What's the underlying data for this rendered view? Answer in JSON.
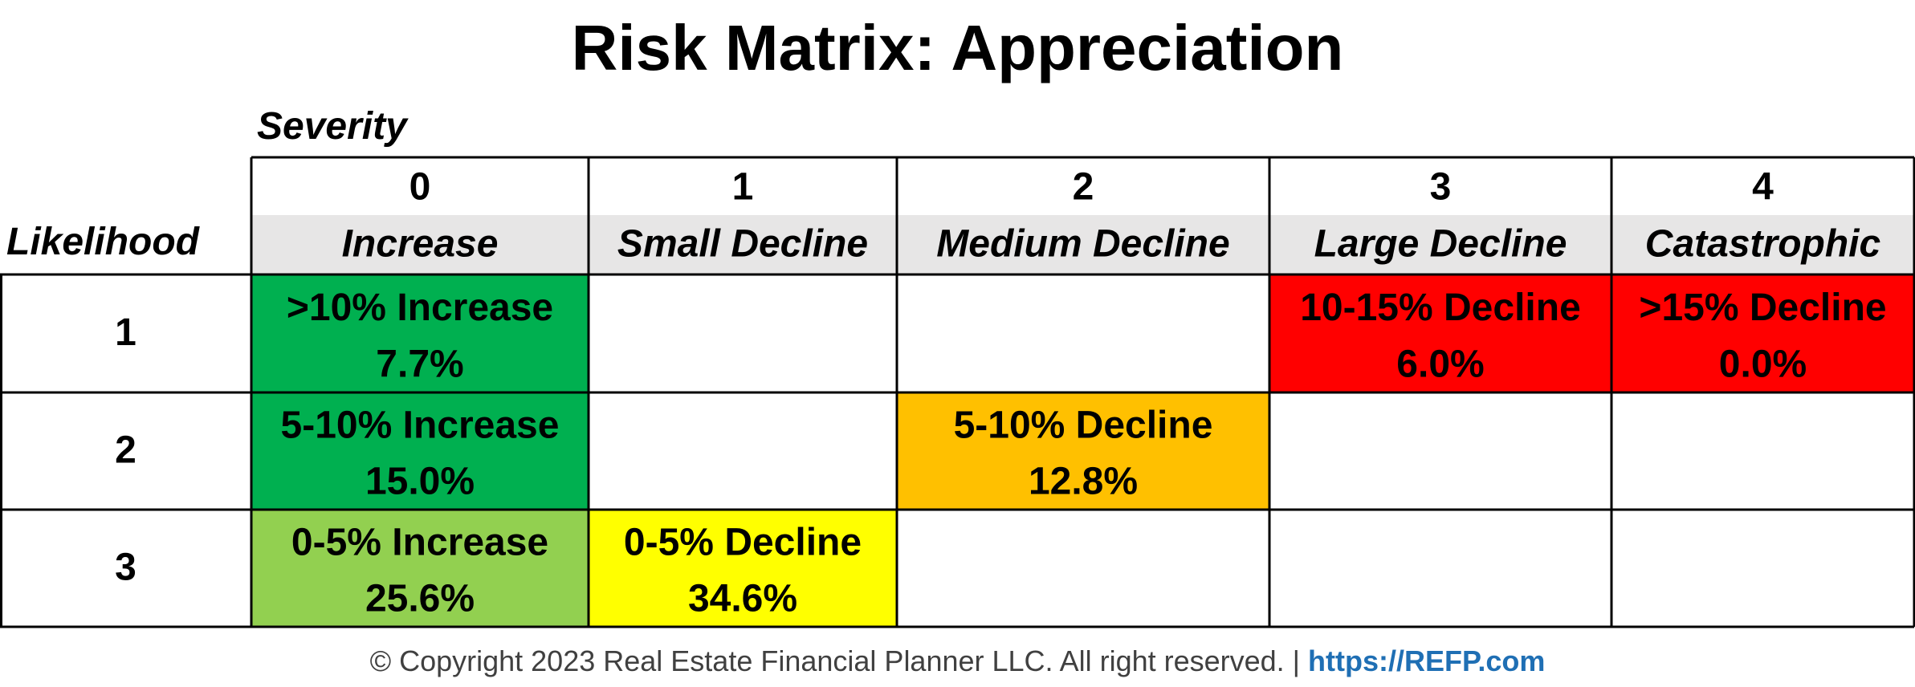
{
  "chart_data": {
    "type": "table",
    "title": "Risk Matrix: Appreciation",
    "column_axis_label": "Severity",
    "row_axis_label": "Likelihood",
    "columns": [
      {
        "number": "0",
        "name": "Increase"
      },
      {
        "number": "1",
        "name": "Small Decline"
      },
      {
        "number": "2",
        "name": "Medium Decline"
      },
      {
        "number": "3",
        "name": "Large Decline"
      },
      {
        "number": "4",
        "name": "Catastrophic"
      }
    ],
    "rows": [
      {
        "likelihood": "1",
        "cells": [
          {
            "label": ">10% Increase",
            "value": "7.7%",
            "color": "#00b050"
          },
          null,
          null,
          {
            "label": "10-15% Decline",
            "value": "6.0%",
            "color": "#ff0000"
          },
          {
            "label": ">15% Decline",
            "value": "0.0%",
            "color": "#ff0000"
          }
        ]
      },
      {
        "likelihood": "2",
        "cells": [
          {
            "label": "5-10% Increase",
            "value": "15.0%",
            "color": "#00b050"
          },
          null,
          {
            "label": "5-10% Decline",
            "value": "12.8%",
            "color": "#ffc000"
          },
          null,
          null
        ]
      },
      {
        "likelihood": "3",
        "cells": [
          {
            "label": "0-5% Increase",
            "value": "25.6%",
            "color": "#92d050"
          },
          {
            "label": "0-5% Decline",
            "value": "34.6%",
            "color": "#ffff00"
          },
          null,
          null,
          null
        ]
      }
    ],
    "header_band_color": "#e7e6e6",
    "grid_color": "#000000"
  },
  "footer": {
    "copyright": "© Copyright 2023 Real Estate Financial Planner LLC. All right reserved. | ",
    "link": "https://REFP.com"
  }
}
